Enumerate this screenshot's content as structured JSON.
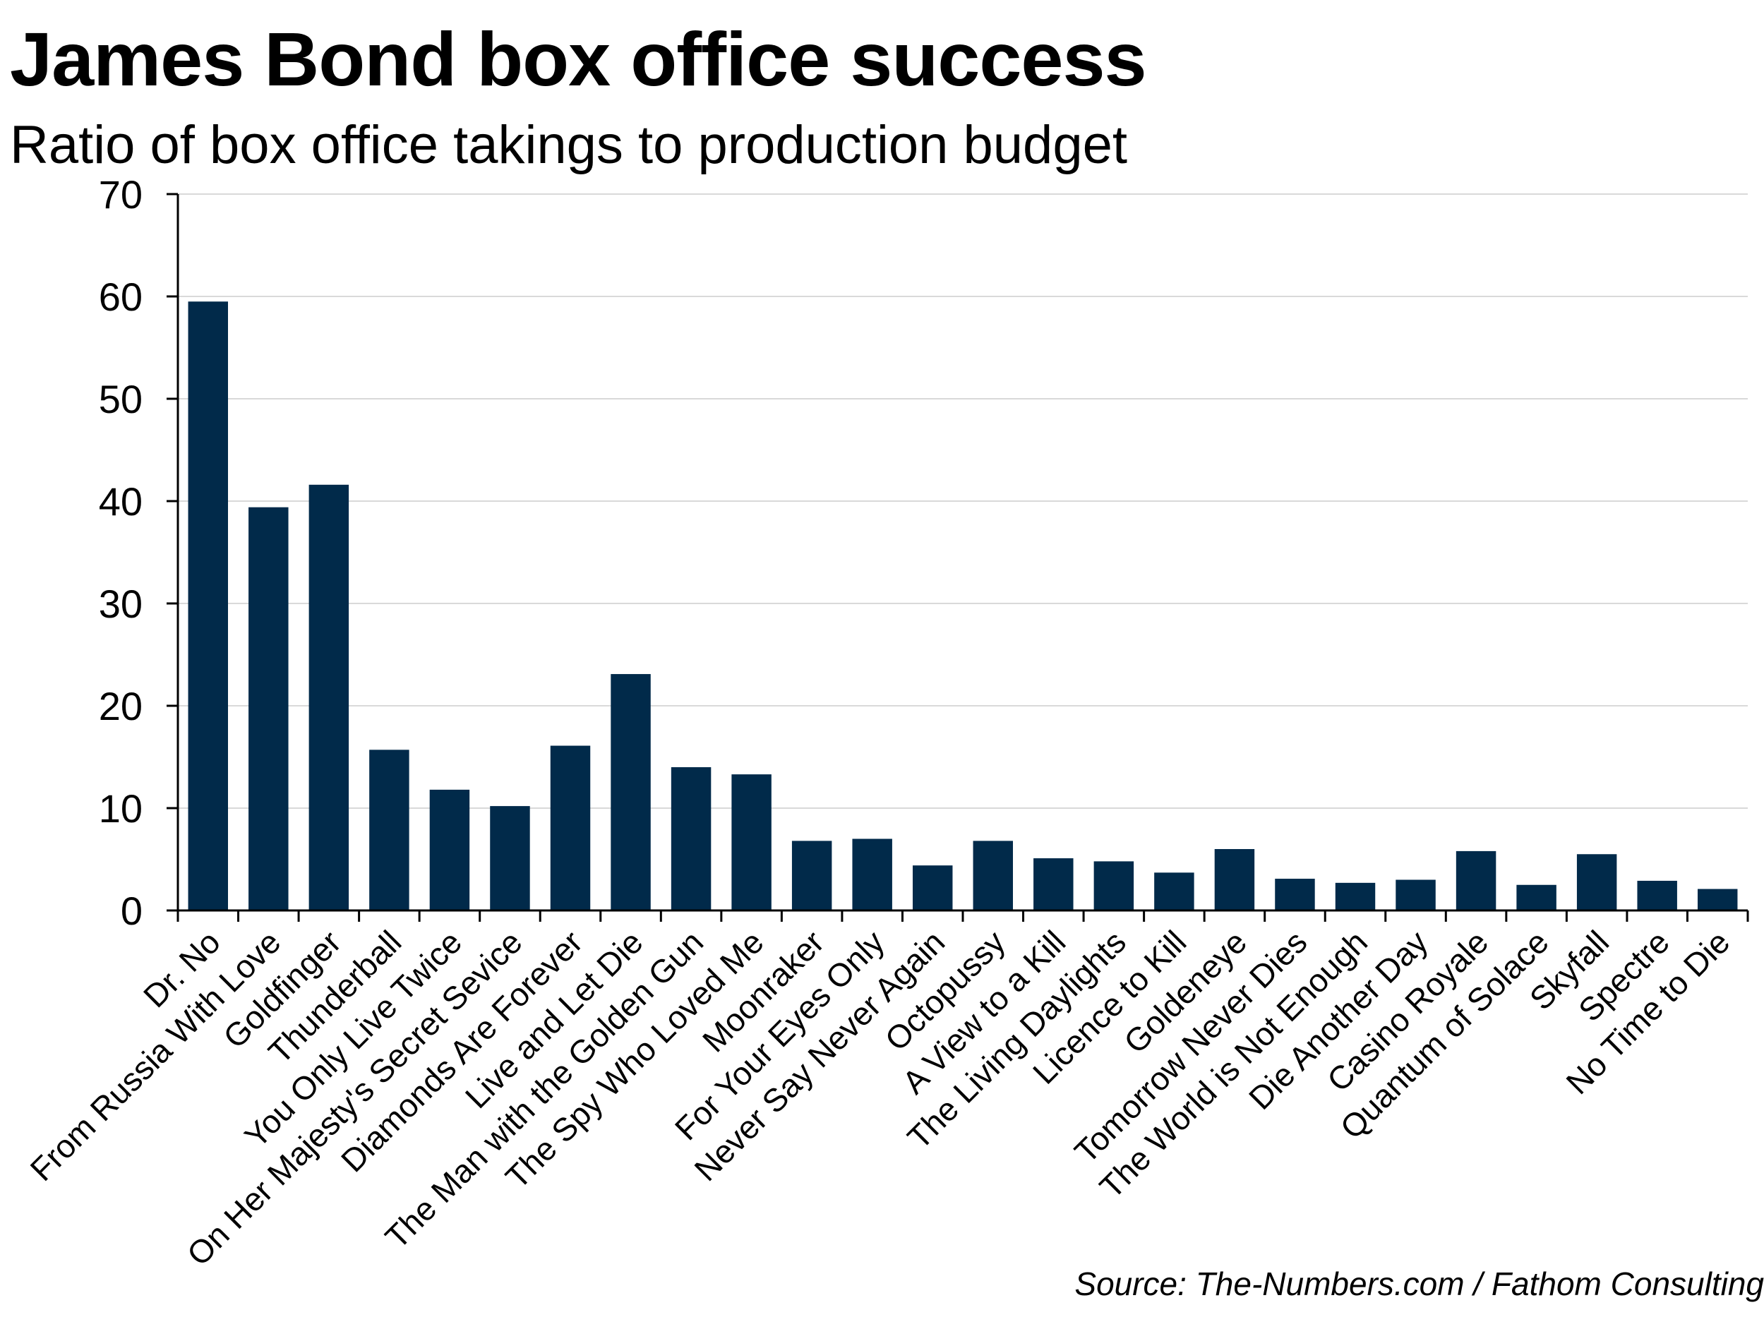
{
  "chart_data": {
    "type": "bar",
    "title": "James Bond box office success",
    "subtitle": "Ratio of box office takings to production budget",
    "source": "Source: The-Numbers.com / Fathom Consulting",
    "categories": [
      "Dr. No",
      "From Russia With Love",
      "Goldfinger",
      "Thunderball",
      "You Only Live Twice",
      "On Her Majesty's Secret Sevice",
      "Diamonds Are Forever",
      "Live and Let Die",
      "The Man with the Golden Gun",
      "The Spy Who Loved Me",
      "Moonraker",
      "For Your Eyes Only",
      "Never Say Never Again",
      "Octopussy",
      "A View to a Kill",
      "The Living Daylights",
      "Licence to Kill",
      "Goldeneye",
      "Tomorrow Never Dies",
      "The World is Not Enough",
      "Die Another Day",
      "Casino Royale",
      "Quantum of Solace",
      "Skyfall",
      "Spectre",
      "No Time to Die"
    ],
    "values": [
      59.5,
      39.4,
      41.6,
      15.7,
      11.8,
      10.2,
      16.1,
      23.1,
      14.0,
      13.3,
      6.8,
      7.0,
      4.4,
      6.8,
      5.1,
      4.8,
      3.7,
      6.0,
      3.1,
      2.7,
      3.0,
      5.8,
      2.5,
      5.5,
      2.9,
      2.1
    ],
    "ylim": [
      0,
      70
    ],
    "yticks": [
      0,
      10,
      20,
      30,
      40,
      50,
      60,
      70
    ],
    "ylabel": "",
    "xlabel": "",
    "grid": true,
    "bar_color": "#012a4a",
    "grid_color": "#d9d9d9",
    "axis_color": "#000000"
  }
}
